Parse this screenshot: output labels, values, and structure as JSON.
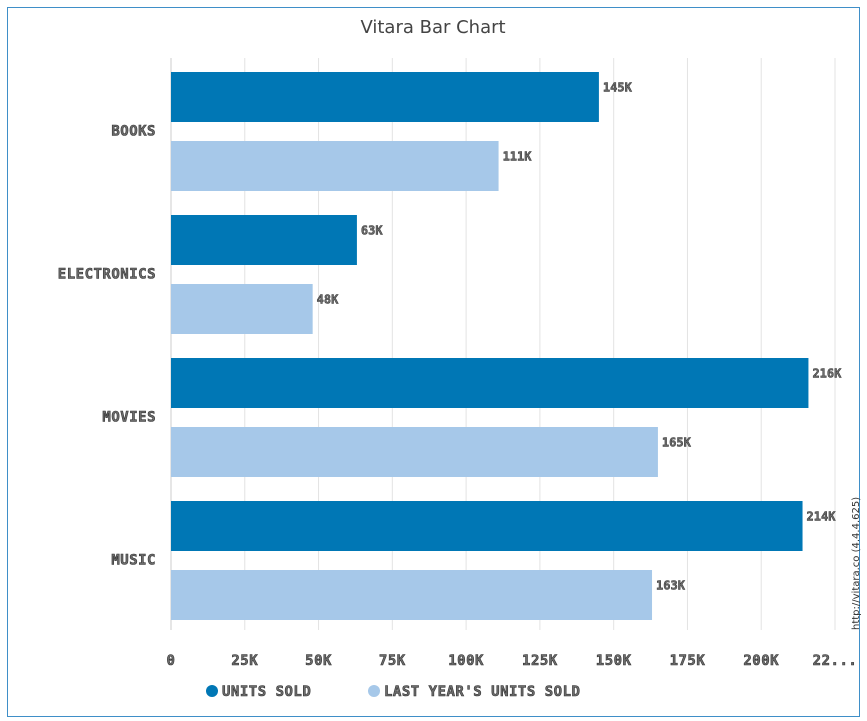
{
  "chart_data": {
    "type": "bar",
    "orientation": "horizontal",
    "title": "Vitara Bar Chart",
    "categories": [
      "BOOKS",
      "ELECTRONICS",
      "MOVIES",
      "MUSIC"
    ],
    "series": [
      {
        "name": "UNITS SOLD",
        "color": "#0077b5",
        "values": [
          145000,
          63000,
          216000,
          214000
        ],
        "value_labels": [
          "145K",
          "63K",
          "216K",
          "214K"
        ]
      },
      {
        "name": "LAST YEAR'S UNITS SOLD",
        "color": "#a6c8e9",
        "values": [
          111000,
          48000,
          165000,
          163000
        ],
        "value_labels": [
          "111K",
          "48K",
          "165K",
          "163K"
        ]
      }
    ],
    "xlim": [
      0,
      225000
    ],
    "xticks": [
      0,
      {
        "value": 25000,
        "label": "25K"
      },
      {
        "value": 50000,
        "label": "50K"
      },
      {
        "value": 75000,
        "label": "75K"
      },
      {
        "value": 100000,
        "label": "100K"
      },
      {
        "value": 125000,
        "label": "125K"
      },
      {
        "value": 150000,
        "label": "150K"
      },
      {
        "value": 175000,
        "label": "175K"
      },
      {
        "value": 200000,
        "label": "200K"
      },
      {
        "value": 225000,
        "label": "22..."
      }
    ],
    "grid": true,
    "legend": "bottom",
    "watermark": "http://vitara.co  (4.4.4.625)"
  }
}
